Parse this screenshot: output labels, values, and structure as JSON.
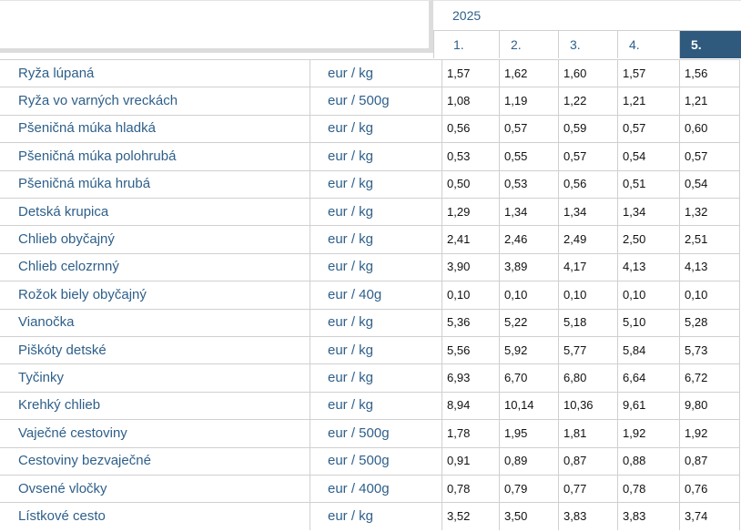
{
  "header": {
    "year": "2025",
    "columns": [
      "1.",
      "2.",
      "3.",
      "4.",
      "5."
    ]
  },
  "table": {
    "rows": [
      {
        "name": "Ryža lúpaná",
        "unit": "eur / kg",
        "values": [
          "1,57",
          "1,62",
          "1,60",
          "1,57",
          "1,56"
        ]
      },
      {
        "name": "Ryža vo varných vreckách",
        "unit": "eur / 500g",
        "values": [
          "1,08",
          "1,19",
          "1,22",
          "1,21",
          "1,21"
        ]
      },
      {
        "name": "Pšeničná múka hladká",
        "unit": "eur / kg",
        "values": [
          "0,56",
          "0,57",
          "0,59",
          "0,57",
          "0,60"
        ]
      },
      {
        "name": "Pšeničná múka polohrubá",
        "unit": "eur / kg",
        "values": [
          "0,53",
          "0,55",
          "0,57",
          "0,54",
          "0,57"
        ]
      },
      {
        "name": "Pšeničná múka hrubá",
        "unit": "eur / kg",
        "values": [
          "0,50",
          "0,53",
          "0,56",
          "0,51",
          "0,54"
        ]
      },
      {
        "name": "Detská krupica",
        "unit": "eur / kg",
        "values": [
          "1,29",
          "1,34",
          "1,34",
          "1,34",
          "1,32"
        ]
      },
      {
        "name": "Chlieb obyčajný",
        "unit": "eur / kg",
        "values": [
          "2,41",
          "2,46",
          "2,49",
          "2,50",
          "2,51"
        ]
      },
      {
        "name": "Chlieb celozrnný",
        "unit": "eur / kg",
        "values": [
          "3,90",
          "3,89",
          "4,17",
          "4,13",
          "4,13"
        ]
      },
      {
        "name": "Rožok biely obyčajný",
        "unit": "eur / 40g",
        "values": [
          "0,10",
          "0,10",
          "0,10",
          "0,10",
          "0,10"
        ]
      },
      {
        "name": "Vianočka",
        "unit": "eur / kg",
        "values": [
          "5,36",
          "5,22",
          "5,18",
          "5,10",
          "5,28"
        ]
      },
      {
        "name": "Piškóty detské",
        "unit": "eur / kg",
        "values": [
          "5,56",
          "5,92",
          "5,77",
          "5,84",
          "5,73"
        ]
      },
      {
        "name": "Tyčinky",
        "unit": "eur / kg",
        "values": [
          "6,93",
          "6,70",
          "6,80",
          "6,64",
          "6,72"
        ]
      },
      {
        "name": "Krehký chlieb",
        "unit": "eur / kg",
        "values": [
          "8,94",
          "10,14",
          "10,36",
          "9,61",
          "9,80"
        ]
      },
      {
        "name": "Vaječné cestoviny",
        "unit": "eur / 500g",
        "values": [
          "1,78",
          "1,95",
          "1,81",
          "1,92",
          "1,92"
        ]
      },
      {
        "name": "Cestoviny bezvaječné",
        "unit": "eur / 500g",
        "values": [
          "0,91",
          "0,89",
          "0,87",
          "0,88",
          "0,87"
        ]
      },
      {
        "name": "Ovsené vločky",
        "unit": "eur / 400g",
        "values": [
          "0,78",
          "0,79",
          "0,77",
          "0,78",
          "0,76"
        ]
      },
      {
        "name": "Lístkové cesto",
        "unit": "eur / kg",
        "values": [
          "3,52",
          "3,50",
          "3,83",
          "3,83",
          "3,74"
        ]
      }
    ]
  }
}
